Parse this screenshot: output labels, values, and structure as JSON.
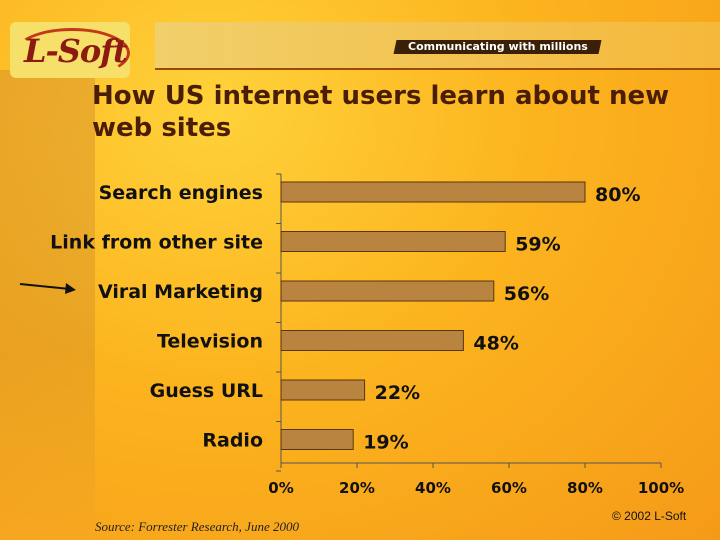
{
  "logo": {
    "text": "L-Soft"
  },
  "banner": {
    "tagline": "Communicating with millions"
  },
  "title": "How US internet users learn about new web sites",
  "footer": {
    "source": "Source: Forrester Research, June 2000",
    "copyright": "© 2002 L-Soft"
  },
  "colors": {
    "bar": "#b8843f",
    "bar_stroke": "#5a3510"
  },
  "chart_data": {
    "type": "bar",
    "orientation": "horizontal",
    "categories": [
      "Search engines",
      "Link from other site",
      "Viral Marketing",
      "Television",
      "Guess URL",
      "Radio"
    ],
    "values": [
      80,
      59,
      56,
      48,
      22,
      19
    ],
    "value_labels": [
      "80%",
      "59%",
      "56%",
      "48%",
      "22%",
      "19%"
    ],
    "xlim": [
      0,
      100
    ],
    "xticks": [
      "0%",
      "20%",
      "40%",
      "60%",
      "80%",
      "100%"
    ],
    "grid": false,
    "highlight": {
      "category": "Viral Marketing",
      "marker": "arrow"
    }
  }
}
